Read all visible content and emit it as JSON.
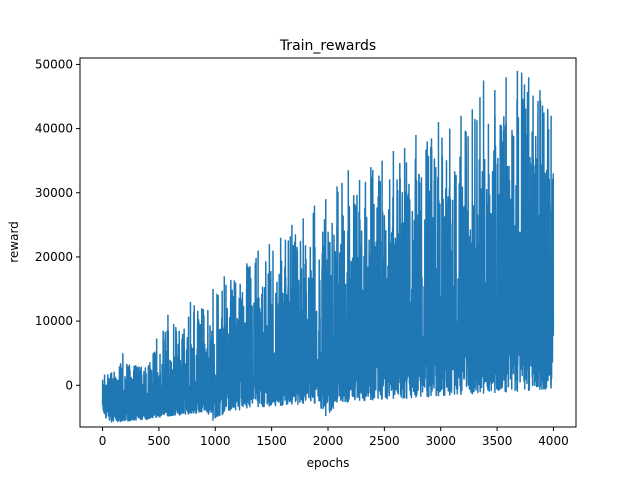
{
  "chart_data": {
    "type": "line",
    "title": "Train_rewards",
    "xlabel": "epochs",
    "ylabel": "reward",
    "xlim": [
      -200,
      4200
    ],
    "ylim": [
      -6500,
      51000
    ],
    "xticks": [
      0,
      500,
      1000,
      1500,
      2000,
      2500,
      3000,
      3500,
      4000
    ],
    "yticks": [
      0,
      10000,
      20000,
      30000,
      40000,
      50000
    ],
    "xtick_labels": [
      "0",
      "500",
      "1000",
      "1500",
      "2000",
      "2500",
      "3000",
      "3500",
      "4000"
    ],
    "ytick_labels": [
      "0",
      "10000",
      "20000",
      "30000",
      "40000",
      "50000"
    ],
    "grid": false,
    "color": "#1f77b4",
    "series": [
      {
        "x_range": [
          0,
          3999
        ],
        "envelope": {
          "x": [
            0,
            100,
            200,
            300,
            400,
            500,
            600,
            700,
            800,
            900,
            1000,
            1100,
            1200,
            1300,
            1400,
            1500,
            1600,
            1700,
            1800,
            1900,
            2000,
            2100,
            2200,
            2300,
            2400,
            2500,
            2600,
            2700,
            2800,
            2900,
            3000,
            3100,
            3200,
            3300,
            3400,
            3500,
            3600,
            3700,
            3800,
            3900,
            3999
          ],
          "max": [
            2500,
            2000,
            5000,
            3000,
            2800,
            7300,
            11000,
            8500,
            13000,
            12000,
            15000,
            17000,
            16000,
            19000,
            21000,
            22000,
            23000,
            25000,
            26000,
            28000,
            29000,
            31000,
            33500,
            32000,
            34000,
            35000,
            36500,
            37000,
            39000,
            38000,
            41000,
            40000,
            42000,
            43000,
            47500,
            46000,
            48000,
            49000,
            48000,
            46000,
            42000
          ],
          "min": [
            -4800,
            -5800,
            -5600,
            -5500,
            -5300,
            -5000,
            -4800,
            -4600,
            -4400,
            -4200,
            -5500,
            -4000,
            -3900,
            -3600,
            -3400,
            -3300,
            -3200,
            -3000,
            -2900,
            -2800,
            -4800,
            -2700,
            -2600,
            -2400,
            -2300,
            -2200,
            -2100,
            -2000,
            -1900,
            -1800,
            -1700,
            -1600,
            -1500,
            -1400,
            -1300,
            -1200,
            -1100,
            -1000,
            -900,
            -700,
            -500
          ],
          "typical_high": [
            800,
            1200,
            1800,
            2300,
            2800,
            3300,
            4200,
            5000,
            6000,
            7000,
            8200,
            9500,
            10500,
            11500,
            12500,
            14000,
            15000,
            16000,
            17000,
            18000,
            19000,
            20000,
            21000,
            22000,
            23000,
            24000,
            25000,
            26000,
            27000,
            28000,
            30000,
            31000,
            32000,
            33000,
            34000,
            35000,
            36000,
            36500,
            36000,
            35000,
            34000
          ]
        }
      }
    ]
  }
}
